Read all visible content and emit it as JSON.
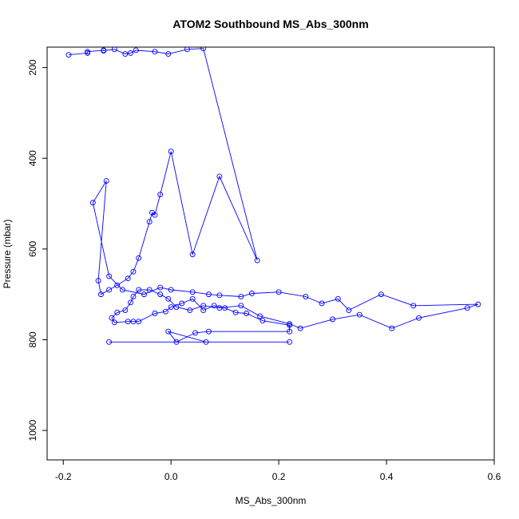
{
  "chart_data": {
    "type": "line",
    "title": "ATOM2 Southbound MS_Abs_300nm",
    "xlabel": "MS_Abs_300nm",
    "ylabel": "Pressure (mbar)",
    "xlim": [
      -0.23,
      0.6
    ],
    "ylim": [
      1065,
      155
    ],
    "y_reversed": true,
    "x_ticks": [
      -0.2,
      0.0,
      0.2,
      0.4,
      0.6
    ],
    "x_tick_labels": [
      "-0.2",
      "0.0",
      "0.2",
      "0.4",
      "0.6"
    ],
    "y_ticks": [
      200,
      400,
      600,
      800,
      1000
    ],
    "y_tick_labels": [
      "200",
      "400",
      "600",
      "800",
      "1000"
    ],
    "grid": false,
    "legend": "none",
    "series_color": "#0000ff",
    "marker": "open-circle",
    "series": [
      {
        "x": [
          -0.19,
          -0.155,
          -0.155,
          -0.125,
          -0.125,
          -0.105,
          -0.085,
          -0.075,
          -0.065,
          -0.03,
          -0.005,
          0.03,
          0.06,
          0.16,
          0.09,
          0.04,
          0.0,
          -0.02,
          -0.03,
          -0.035,
          -0.04,
          -0.06,
          -0.07,
          -0.08,
          -0.1,
          -0.115,
          -0.13,
          -0.135,
          -0.12,
          -0.145,
          -0.115,
          -0.09,
          -0.05,
          -0.02,
          0.0,
          0.04,
          0.07,
          0.09,
          0.13,
          0.15,
          0.2,
          0.25,
          0.28,
          0.31,
          0.33,
          0.39,
          0.45,
          0.57,
          0.55,
          0.46,
          0.41,
          0.35,
          0.3,
          0.24,
          0.22,
          0.165,
          0.13,
          0.09,
          0.06,
          0.035,
          0.01,
          -0.005,
          -0.02,
          -0.04,
          -0.06,
          -0.07,
          -0.075,
          -0.085,
          -0.1,
          -0.11,
          -0.105,
          -0.08,
          -0.07,
          -0.06,
          -0.03,
          -0.01,
          0.0,
          0.02,
          0.04,
          0.06,
          0.08,
          0.1,
          0.12,
          0.14,
          0.17,
          0.22,
          0.22,
          0.07,
          0.045,
          0.01,
          -0.005,
          0.065,
          0.22,
          -0.115
        ],
        "y": [
          172,
          168,
          165,
          162,
          163,
          160,
          170,
          168,
          162,
          165,
          170,
          160,
          158,
          625,
          440,
          612,
          385,
          480,
          525,
          520,
          540,
          620,
          650,
          665,
          680,
          690,
          700,
          670,
          450,
          498,
          660,
          690,
          700,
          685,
          690,
          695,
          700,
          702,
          705,
          698,
          695,
          705,
          720,
          710,
          735,
          700,
          725,
          722,
          730,
          752,
          775,
          745,
          755,
          775,
          765,
          748,
          725,
          730,
          725,
          735,
          728,
          710,
          700,
          690,
          690,
          705,
          718,
          735,
          740,
          752,
          762,
          760,
          760,
          760,
          742,
          738,
          728,
          720,
          710,
          735,
          725,
          730,
          740,
          742,
          758,
          768,
          782,
          782,
          785,
          805,
          782,
          805,
          805,
          805
        ]
      }
    ]
  }
}
